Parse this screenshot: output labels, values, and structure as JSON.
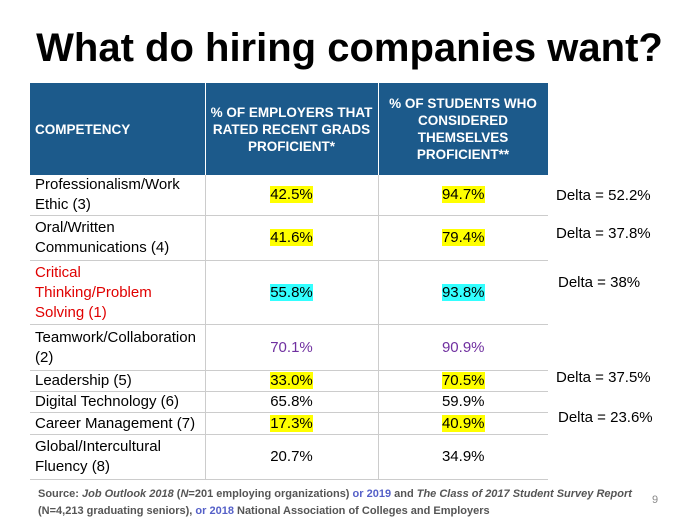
{
  "title": "What do hiring companies want?",
  "table": {
    "header": [
      "COMPETENCY",
      "% OF EMPLOYERS THAT RATED RECENT GRADS PROFICIENT*",
      "% OF STUDENTS WHO CONSIDERED THEMSELVES PROFICIENT**"
    ],
    "rows": [
      [
        "Professionalism/Work Ethic (3)",
        "42.5%",
        "94.7%"
      ],
      [
        "Oral/Written Communications (4)",
        "41.6%",
        "79.4%"
      ],
      [
        "Critical Thinking/Problem Solving (1)",
        "55.8%",
        "93.8%"
      ],
      [
        "Teamwork/Collaboration (2)",
        "70.1%",
        "90.9%"
      ],
      [
        "Leadership (5)",
        "33.0%",
        "70.5%"
      ],
      [
        "Digital Technology (6)",
        "65.8%",
        "59.9%"
      ],
      [
        "Career Management (7)",
        "17.3%",
        "40.9%"
      ],
      [
        "Global/Intercultural Fluency (8)",
        "20.7%",
        "34.9%"
      ]
    ]
  },
  "deltas": [
    "Delta = 52.2%",
    "Delta = 37.8%",
    "Delta = 38%",
    "Delta = 37.5%",
    "Delta = 23.6%"
  ],
  "source": {
    "line1": [
      "Source: ",
      "Job Outlook 2018",
      " (",
      "N",
      "=201 employing organizations) ",
      "or 2019",
      " and ",
      "The Class of 2017 Student Survey Report"
    ],
    "line2": [
      "(N=4,213 graduating seniors), ",
      "or 2018",
      " National Association of Colleges and Employers"
    ]
  },
  "page_number": "9"
}
